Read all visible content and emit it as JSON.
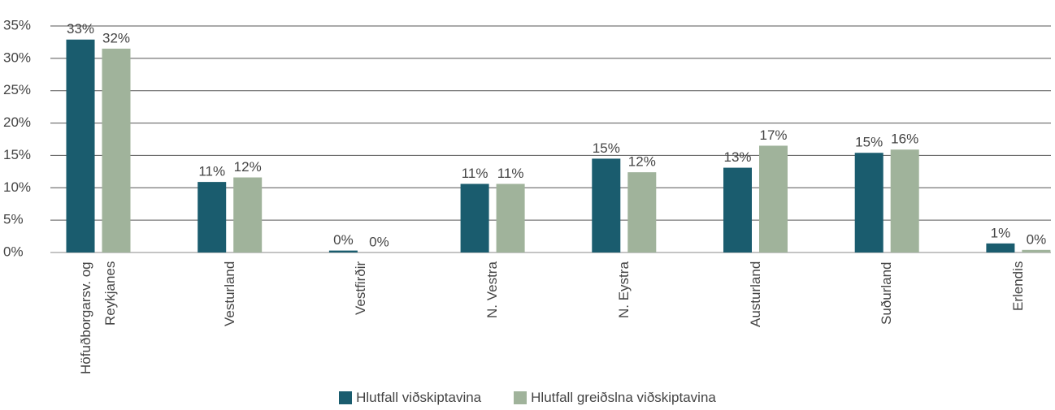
{
  "chart_data": {
    "type": "bar",
    "categories": [
      "Höfuðborgarsv. og Reykjanes",
      "Vesturland",
      "Vestfirðir",
      "N. Vestra",
      "N. Eystra",
      "Austurland",
      "Suðurland",
      "Erlendis"
    ],
    "series": [
      {
        "name": "Hlutfall viðskiptavina",
        "color": "#1a5c6e",
        "values": [
          32.9,
          10.9,
          0.3,
          10.6,
          14.5,
          13.1,
          15.4,
          1.4
        ],
        "value_labels": [
          "33%",
          "11%",
          "0%",
          "11%",
          "15%",
          "13%",
          "15%",
          "1%"
        ]
      },
      {
        "name": "Hlutfall greiðslna viðskiptavina",
        "color": "#a0b39b",
        "values": [
          31.5,
          11.6,
          0,
          10.6,
          12.4,
          16.5,
          15.9,
          0.4
        ],
        "value_labels": [
          "32%",
          "12%",
          "0%",
          "11%",
          "12%",
          "17%",
          "16%",
          "0%"
        ]
      }
    ],
    "ylim": [
      0,
      35
    ],
    "yticks": [
      {
        "value": 0,
        "label": "0%"
      },
      {
        "value": 5,
        "label": "5%"
      },
      {
        "value": 10,
        "label": "10%"
      },
      {
        "value": 15,
        "label": "15%"
      },
      {
        "value": 20,
        "label": "20%"
      },
      {
        "value": 25,
        "label": "25%"
      },
      {
        "value": 30,
        "label": "30%"
      },
      {
        "value": 35,
        "label": "35%"
      }
    ],
    "grid": true,
    "legend": "bottom"
  }
}
